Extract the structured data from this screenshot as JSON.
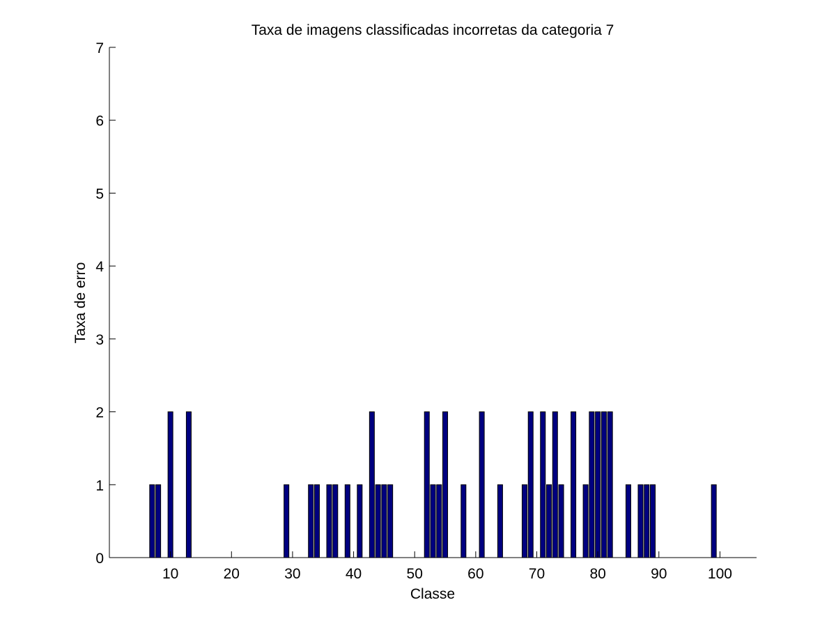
{
  "chart_data": {
    "type": "bar",
    "title": "Taxa de imagens classificadas incorretas da categoria 7",
    "xlabel": "Classe",
    "ylabel": "Taxa de erro",
    "xlim": [
      0,
      106
    ],
    "ylim": [
      0,
      7
    ],
    "xticks": [
      10,
      20,
      30,
      40,
      50,
      60,
      70,
      80,
      90,
      100
    ],
    "yticks": [
      0,
      1,
      2,
      3,
      4,
      5,
      6,
      7
    ],
    "grid": false,
    "bar_color": "#000080",
    "x": [
      7,
      8,
      10,
      13,
      29,
      33,
      34,
      36,
      37,
      39,
      41,
      43,
      44,
      45,
      46,
      52,
      53,
      54,
      55,
      58,
      61,
      64,
      68,
      69,
      71,
      72,
      73,
      74,
      76,
      78,
      79,
      80,
      81,
      82,
      85,
      87,
      88,
      89,
      99
    ],
    "values": [
      1,
      1,
      2,
      2,
      1,
      1,
      1,
      1,
      1,
      1,
      1,
      2,
      1,
      1,
      1,
      2,
      1,
      1,
      2,
      1,
      2,
      1,
      1,
      2,
      2,
      1,
      2,
      1,
      2,
      1,
      2,
      2,
      2,
      2,
      1,
      1,
      1,
      1,
      1
    ]
  }
}
